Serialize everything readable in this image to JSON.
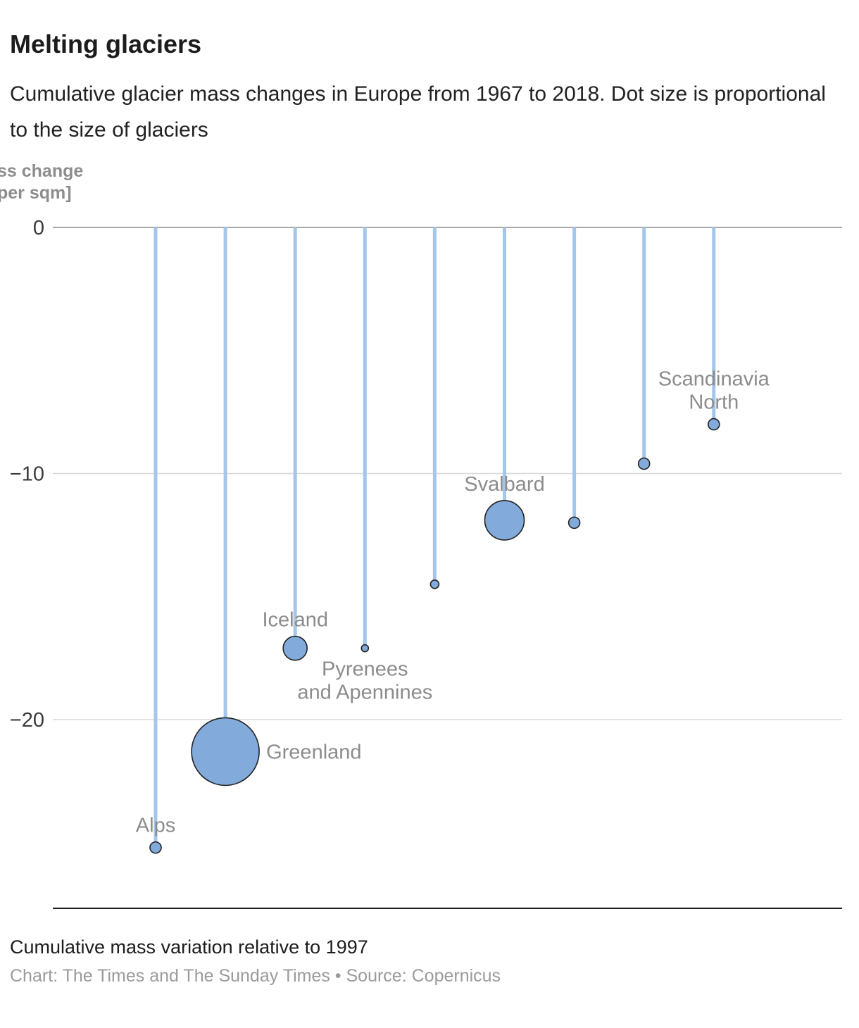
{
  "title": "Melting glaciers",
  "subtitle": "Cumulative glacier mass changes in Europe from 1967 to 2018. Dot size is proportional to the size of glaciers",
  "axis_title_lines": [
    "ss change",
    "per sqm]"
  ],
  "footnote": "Cumulative mass variation relative to 1997",
  "credit": "Chart: The Times and The Sunday Times • Source: Copernicus",
  "colors": {
    "stem_line": "#a3c6ea",
    "dot_fill": "#82abdc",
    "dot_stroke": "#222222",
    "grid_line": "#d8d8d8",
    "zero_line": "#8c8c8c",
    "point_label": "#8c8c8c",
    "tick_label": "#3a3a3a"
  },
  "chart_data": {
    "type": "lollipop",
    "title": "Melting glaciers",
    "subtitle": "Cumulative glacier mass changes in Europe from 1967 to 2018. Dot size is proportional to the size of glaciers",
    "ylabel_visible_fragments": [
      "ss change",
      "per sqm]"
    ],
    "yticks": [
      "0",
      "−10",
      "−20"
    ],
    "ytick_values": [
      0,
      -10,
      -20
    ],
    "ylim": [
      -27.5,
      0.5
    ],
    "grid": true,
    "legend": false,
    "value_description": "Cumulative mass variation relative to 1997",
    "points": [
      {
        "label_lines": [
          "Alps"
        ],
        "label_pos": "above",
        "value": -25.2,
        "radius": 8
      },
      {
        "label_lines": [
          "Greenland"
        ],
        "label_pos": "right",
        "value": -21.3,
        "radius": 48
      },
      {
        "label_lines": [
          "Iceland"
        ],
        "label_pos": "above",
        "value": -17.1,
        "radius": 17
      },
      {
        "label_lines": [
          "Pyrenees",
          "and Apennines"
        ],
        "label_pos": "below",
        "value": -17.1,
        "radius": 5
      },
      {
        "label_lines": [],
        "label_pos": "none",
        "value": -14.5,
        "radius": 6
      },
      {
        "label_lines": [
          "Svalbard"
        ],
        "label_pos": "above",
        "value": -11.9,
        "radius": 28
      },
      {
        "label_lines": [],
        "label_pos": "none",
        "value": -12.0,
        "radius": 8
      },
      {
        "label_lines": [],
        "label_pos": "none",
        "value": -9.6,
        "radius": 8
      },
      {
        "label_lines": [
          "Scandinavia",
          "North"
        ],
        "label_pos": "above",
        "value": -8.0,
        "radius": 8
      }
    ]
  }
}
